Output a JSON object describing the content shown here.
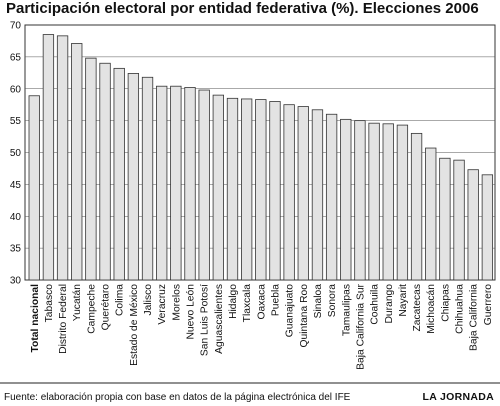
{
  "chart_data": {
    "type": "bar",
    "title": "Participación electoral por entidad federativa (%). Elecciones 2006",
    "xlabel": "",
    "ylabel": "",
    "ylim": [
      30,
      70
    ],
    "yticks": [
      30,
      35,
      40,
      45,
      50,
      55,
      60,
      65,
      70
    ],
    "grid": "horizontal",
    "categories": [
      "Total nacional",
      "Tabasco",
      "Distrito Federal",
      "Yucatán",
      "Campeche",
      "Querétaro",
      "Colima",
      "Estado de México",
      "Jalisco",
      "Veracruz",
      "Morelos",
      "Nuevo León",
      "San Luis Potosí",
      "Aguascalientes",
      "Hidalgo",
      "Tlaxcala",
      "Oaxaca",
      "Puebla",
      "Guanajuato",
      "Quintana Roo",
      "Sinaloa",
      "Sonora",
      "Tamaulipas",
      "Baja California Sur",
      "Coahuila",
      "Durango",
      "Nayarit",
      "Zacatecas",
      "Michoacán",
      "Chiapas",
      "Chihuahua",
      "Baja California",
      "Guerrero"
    ],
    "values": [
      58.9,
      68.5,
      68.3,
      67.1,
      64.8,
      64.0,
      63.2,
      62.4,
      61.8,
      60.4,
      60.4,
      60.2,
      59.8,
      59.0,
      58.5,
      58.4,
      58.3,
      58.0,
      57.5,
      57.2,
      56.7,
      56.0,
      55.2,
      55.0,
      54.6,
      54.5,
      54.3,
      53.0,
      50.7,
      49.1,
      48.8,
      47.3,
      46.5
    ],
    "bar_color": "#e3e3e3",
    "bar_stroke": "#333333"
  },
  "footer": {
    "source": "Fuente: elaboración propia con base en datos de la página electrónica del IFE",
    "credit": "LA JORNADA"
  }
}
